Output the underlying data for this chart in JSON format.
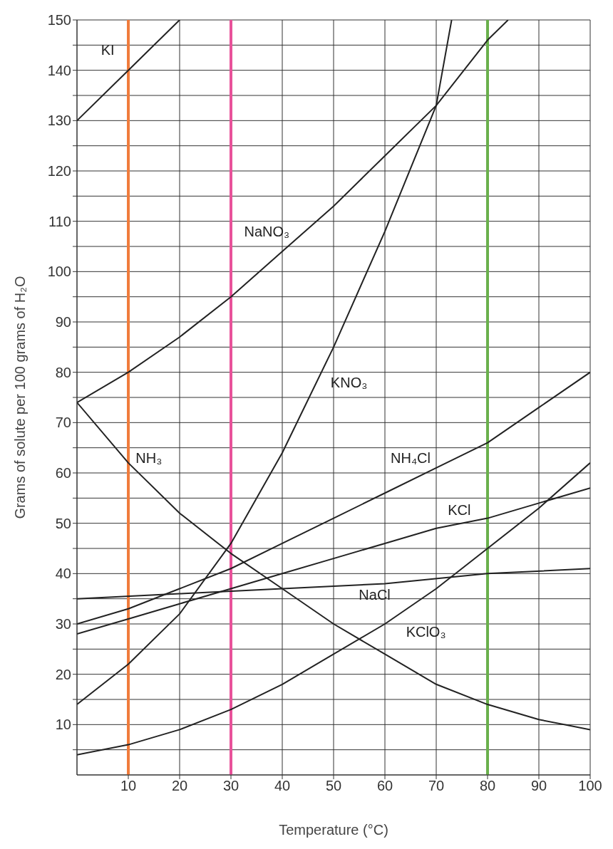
{
  "chart_data": {
    "type": "line",
    "xlabel": "Temperature (°C)",
    "ylabel": "Grams of solute per 100 grams of H₂O",
    "xlim": [
      0,
      100
    ],
    "xticks": [
      10,
      20,
      30,
      40,
      50,
      60,
      70,
      80,
      90,
      100
    ],
    "ylim": [
      0,
      150
    ],
    "yticks": [
      {
        "value": 5,
        "label": null
      },
      10,
      {
        "value": 15,
        "label": null
      },
      20,
      {
        "value": 25,
        "label": null
      },
      30,
      {
        "value": 35,
        "label": null
      },
      40,
      {
        "value": 45,
        "label": null
      },
      50,
      {
        "value": 55,
        "label": null
      },
      60,
      {
        "value": 65,
        "label": null
      },
      70,
      {
        "value": 75,
        "label": null
      },
      80,
      {
        "value": 85,
        "label": null
      },
      90,
      {
        "value": 95,
        "label": null
      },
      100,
      {
        "value": 105,
        "label": null
      },
      110,
      {
        "value": 115,
        "label": null
      },
      120,
      {
        "value": 125,
        "label": null
      },
      130,
      {
        "value": 135,
        "label": null
      },
      140,
      {
        "value": 145,
        "label": null
      },
      150
    ],
    "grid": true,
    "marker": "none",
    "line_style": "solid",
    "legend": false,
    "series": [
      {
        "name": "KI",
        "color": "#222222",
        "x": [
          0,
          10,
          20
        ],
        "values": [
          130,
          140,
          150
        ]
      },
      {
        "name": "NaNO₃",
        "color": "#222222",
        "x": [
          0,
          10,
          20,
          30,
          40,
          50,
          60,
          70,
          80,
          84
        ],
        "values": [
          74,
          80,
          87,
          95,
          104,
          113,
          123,
          133,
          146,
          150
        ]
      },
      {
        "name": "KNO₃",
        "color": "#222222",
        "x": [
          0,
          10,
          20,
          30,
          40,
          50,
          60,
          70,
          73
        ],
        "values": [
          14,
          22,
          32,
          46,
          64,
          85,
          108,
          133,
          150
        ]
      },
      {
        "name": "NH₄Cl",
        "color": "#222222",
        "x": [
          0,
          10,
          20,
          30,
          40,
          50,
          60,
          70,
          80,
          90,
          100
        ],
        "values": [
          30,
          33,
          37,
          41,
          46,
          51,
          56,
          61,
          66,
          73,
          80
        ]
      },
      {
        "name": "KCl",
        "color": "#222222",
        "x": [
          0,
          10,
          20,
          30,
          40,
          50,
          60,
          70,
          80,
          90,
          100
        ],
        "values": [
          28,
          31,
          34,
          37,
          40,
          43,
          46,
          49,
          51,
          54,
          57
        ]
      },
      {
        "name": "NaCl",
        "color": "#222222",
        "x": [
          0,
          20,
          40,
          60,
          80,
          100
        ],
        "values": [
          35,
          36,
          37,
          38,
          40,
          41
        ]
      },
      {
        "name": "NH₃",
        "color": "#222222",
        "x": [
          0,
          10,
          20,
          30,
          40,
          50,
          60,
          70,
          80,
          90,
          100
        ],
        "values": [
          74,
          62,
          52,
          44,
          37,
          30,
          24,
          18,
          14,
          11,
          9
        ]
      },
      {
        "name": "KClO₃",
        "color": "#222222",
        "x": [
          0,
          10,
          20,
          30,
          40,
          50,
          60,
          70,
          80,
          90,
          100
        ],
        "values": [
          4,
          6,
          9,
          13,
          18,
          24,
          30,
          37,
          45,
          53,
          62
        ]
      }
    ],
    "ref_lines": [
      {
        "axis": "x",
        "value": 10,
        "color": "#f07c3c"
      },
      {
        "axis": "x",
        "value": 30,
        "color": "#e8529a"
      },
      {
        "axis": "x",
        "value": 80,
        "color": "#6ab04c"
      }
    ]
  }
}
